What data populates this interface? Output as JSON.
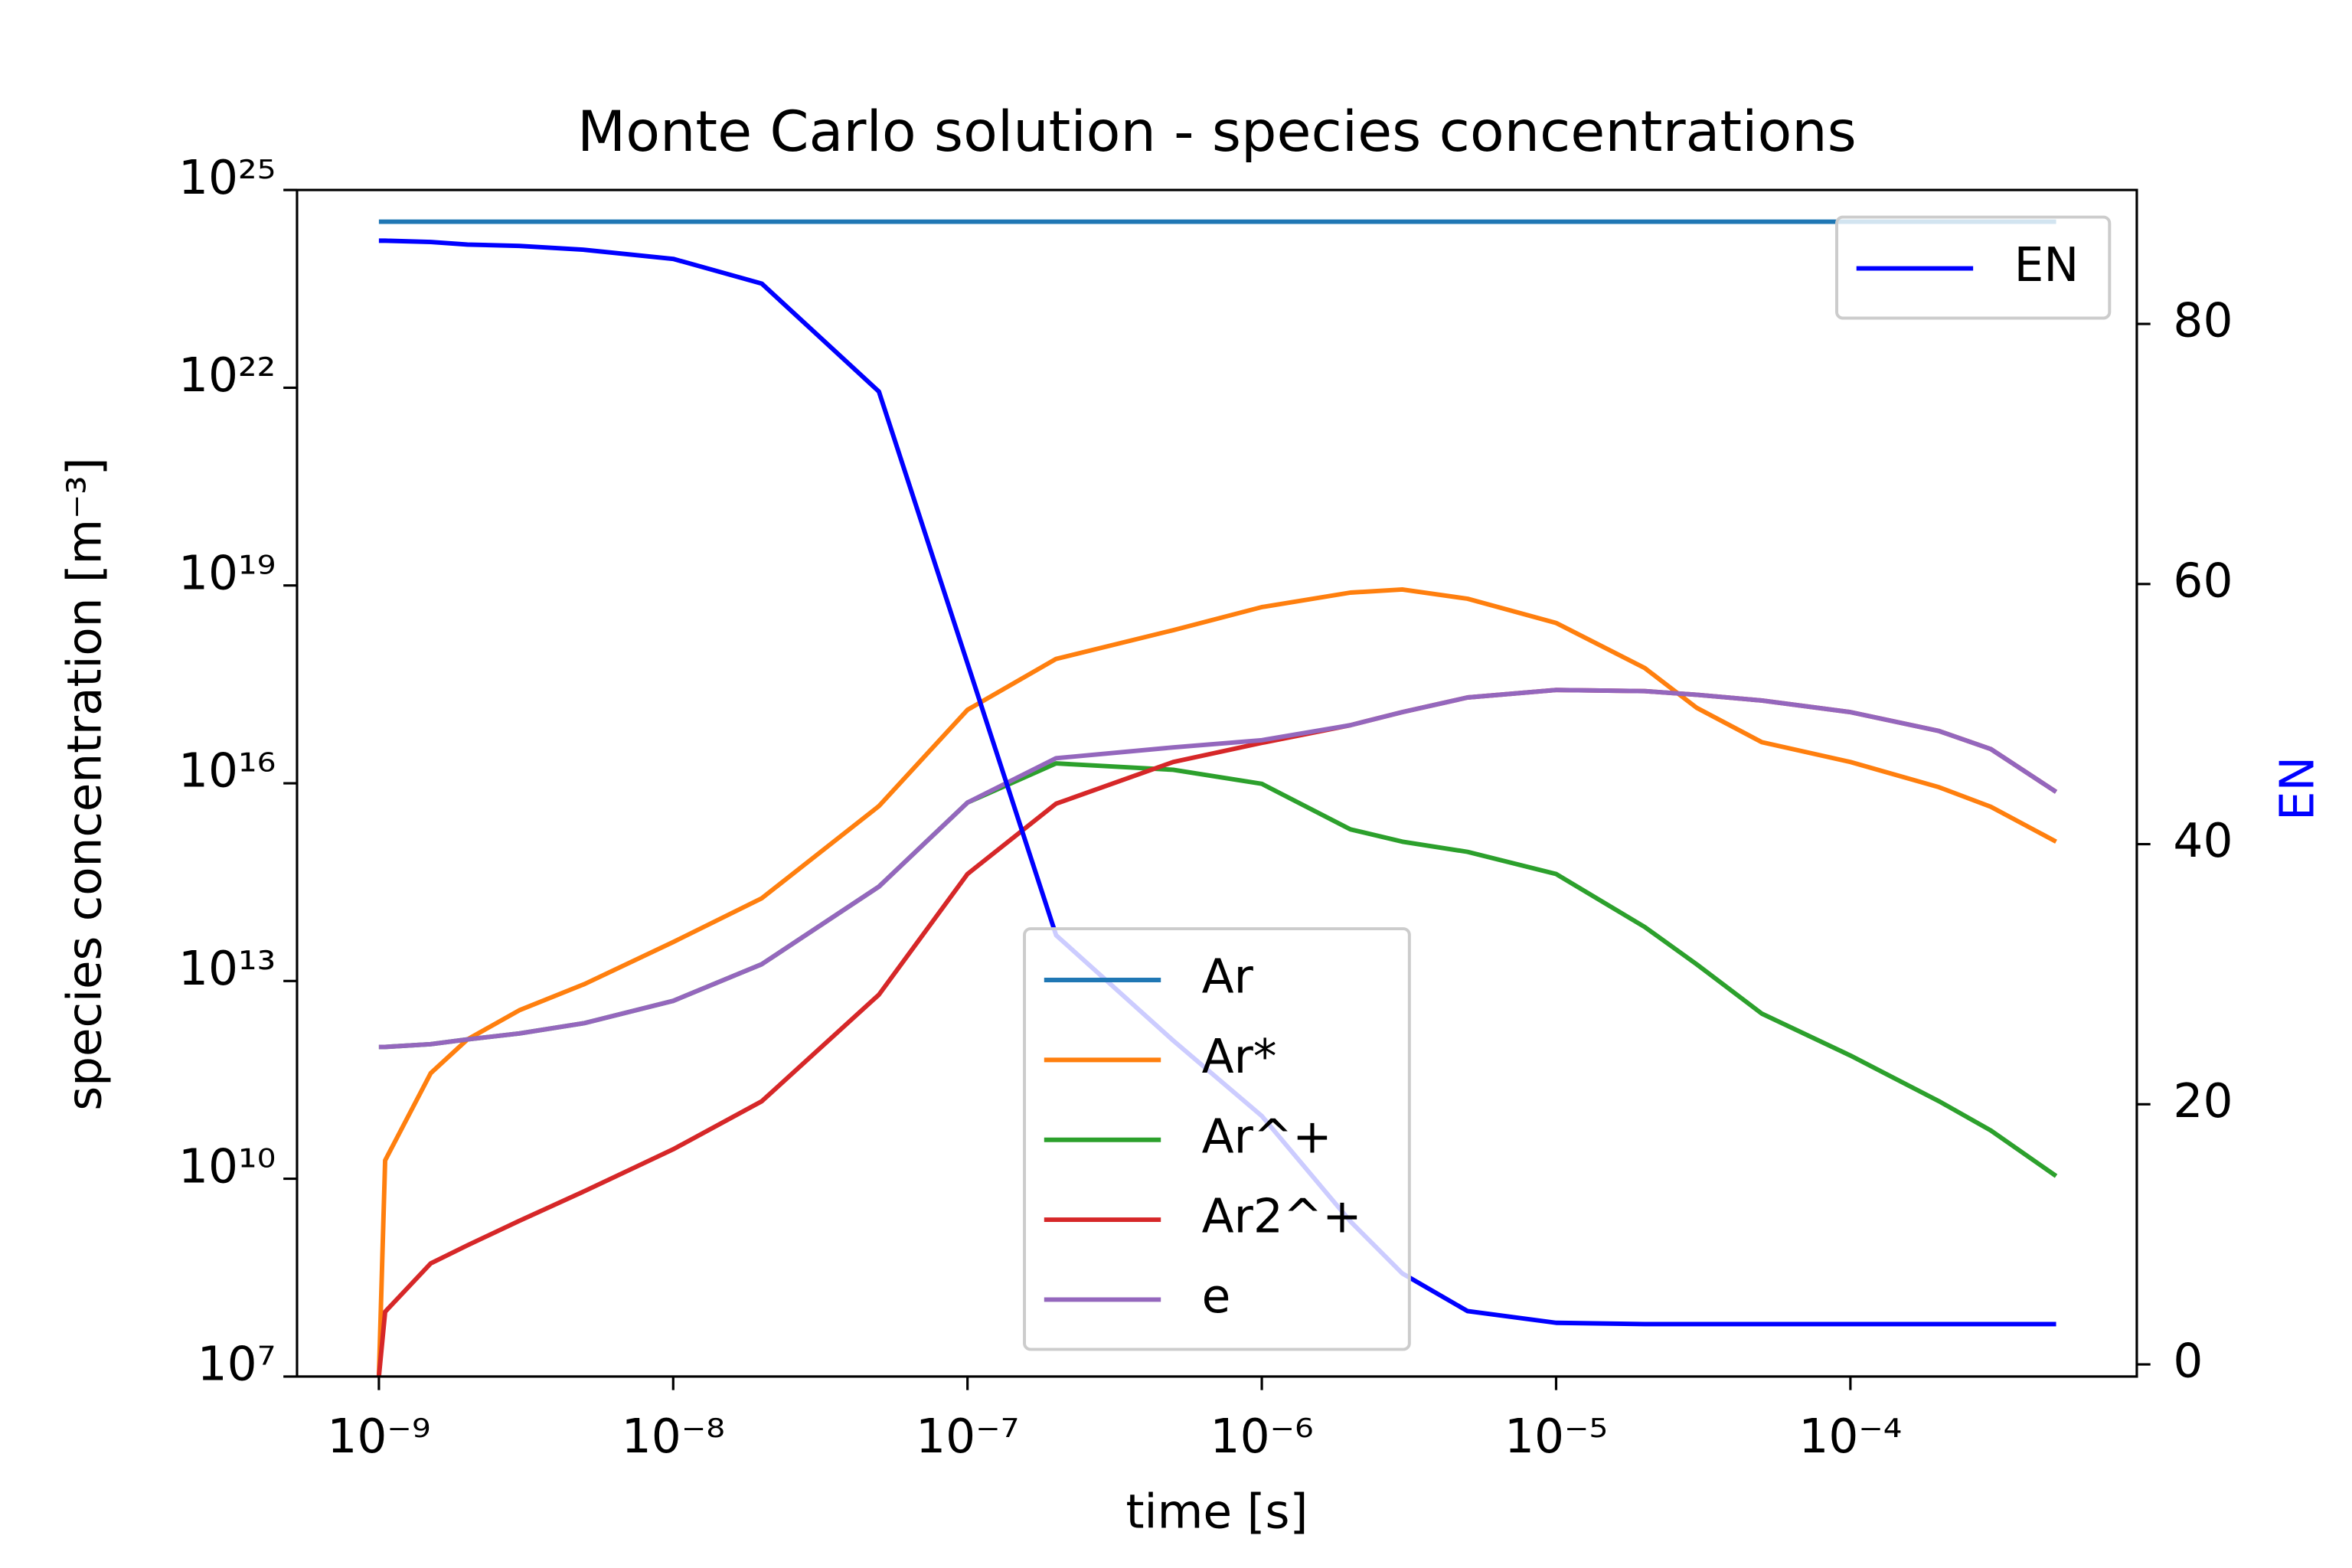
{
  "chart_data": {
    "type": "line",
    "title": "Monte Carlo solution - species concentrations",
    "xlabel": "time [s]",
    "ylabel": "species concentration [m⁻³]",
    "y2label": "EN",
    "xscale": "log",
    "yscale": "log",
    "xlim": [
      5.27e-10,
      0.00094
    ],
    "ylim": [
      10000000.0,
      1e+25
    ],
    "y2lim": [
      -0.93,
      90.3
    ],
    "xticks": [
      {
        "value": 1e-09,
        "label": "10⁻⁹"
      },
      {
        "value": 1e-08,
        "label": "10⁻⁸"
      },
      {
        "value": 1e-07,
        "label": "10⁻⁷"
      },
      {
        "value": 1e-06,
        "label": "10⁻⁶"
      },
      {
        "value": 1e-05,
        "label": "10⁻⁵"
      },
      {
        "value": 0.0001,
        "label": "10⁻⁴"
      }
    ],
    "yticks": [
      {
        "value": 10000000.0,
        "label": "10⁷"
      },
      {
        "value": 10000000000.0,
        "label": "10¹⁰"
      },
      {
        "value": 10000000000000.0,
        "label": "10¹³"
      },
      {
        "value": 1e+16,
        "label": "10¹⁶"
      },
      {
        "value": 1e+19,
        "label": "10¹⁹"
      },
      {
        "value": 1e+22,
        "label": "10²²"
      },
      {
        "value": 1e+25,
        "label": "10²⁵"
      }
    ],
    "y2ticks": [
      0,
      20,
      40,
      60,
      80
    ],
    "y2label_color": "#0000ff",
    "legend": "lower center",
    "legend_y2": "upper right",
    "x": [
      1e-09,
      1.05e-09,
      1.5e-09,
      2e-09,
      3e-09,
      5e-09,
      1e-08,
      2e-08,
      5e-08,
      1e-07,
      2e-07,
      5e-07,
      1e-06,
      2e-06,
      3e-06,
      5e-06,
      1e-05,
      2e-05,
      3e-05,
      5e-05,
      0.0001,
      0.0002,
      0.0003,
      0.0005
    ],
    "series": [
      {
        "name": "Ar",
        "color": "#1f77b4",
        "values": [
          3.3e+24,
          3.3e+24,
          3.3e+24,
          3.3e+24,
          3.3e+24,
          3.3e+24,
          3.3e+24,
          3.3e+24,
          3.3e+24,
          3.3e+24,
          3.3e+24,
          3.3e+24,
          3.3e+24,
          3.3e+24,
          3.3e+24,
          3.3e+24,
          3.3e+24,
          3.3e+24,
          3.3e+24,
          3.3e+24,
          3.3e+24,
          3.3e+24,
          3.3e+24,
          3.3e+24
        ]
      },
      {
        "name": "Ar*",
        "color": "#ff7f0e",
        "values": [
          10000000.0,
          19000000000.0,
          400000000000.0,
          1300000000000.0,
          3600000000000.0,
          9000000000000.0,
          39000000000000.0,
          180000000000000.0,
          4500000000000000.0,
          1.3e+17,
          7.7e+17,
          2.1e+18,
          4.7e+18,
          7.8e+18,
          8.7e+18,
          6.3e+18,
          2.7e+18,
          5.6e+17,
          1.4e+17,
          4.2e+16,
          2.1e+16,
          8700000000000000.0,
          4400000000000000.0,
          1300000000000000.0
        ]
      },
      {
        "name": "Ar^+",
        "color": "#2ca02c",
        "values": [
          1000000000000.0,
          1000000000000.0,
          1100000000000.0,
          1300000000000.0,
          1600000000000.0,
          2300000000000.0,
          5000000000000.0,
          18000000000000.0,
          270000000000000.0,
          5100000000000000.0,
          2e+16,
          1.6e+16,
          9800000000000000.0,
          2000000000000000.0,
          1300000000000000.0,
          910000000000000.0,
          420000000000000.0,
          66000000000000.0,
          18000000000000.0,
          3200000000000.0,
          740000000000.0,
          150000000000.0,
          54000000000.0,
          11000000000.0
        ]
      },
      {
        "name": "Ar2^+",
        "color": "#d62728",
        "values": [
          10000000.0,
          96000000.0,
          520000000.0,
          980000000.0,
          2300000000.0,
          6500000000.0,
          28000000000.0,
          150000000000.0,
          6200000000000.0,
          420000000000000.0,
          4900000000000000.0,
          2.1e+16,
          4.1e+16,
          7.6e+16,
          1.2e+17,
          2e+17,
          2.6e+17,
          2.5e+17,
          2.2e+17,
          1.8e+17,
          1.2e+17,
          6.2e+16,
          3.3e+16,
          7400000000000000.0
        ]
      },
      {
        "name": "e",
        "color": "#9467bd",
        "values": [
          1000000000000.0,
          1000000000000.0,
          1100000000000.0,
          1300000000000.0,
          1600000000000.0,
          2300000000000.0,
          5000000000000.0,
          18000000000000.0,
          270000000000000.0,
          5100000000000000.0,
          2.4e+16,
          3.5e+16,
          4.5e+16,
          7.6e+16,
          1.2e+17,
          2e+17,
          2.6e+17,
          2.5e+17,
          2.2e+17,
          1.8e+17,
          1.2e+17,
          6.2e+16,
          3.3e+16,
          7400000000000000.0
        ]
      },
      {
        "name": "EN",
        "color": "#0000ff",
        "axis": "y2",
        "values": [
          86.4,
          86.4,
          86.3,
          86.1,
          86.0,
          85.7,
          85.0,
          83.1,
          74.8,
          53.9,
          33.0,
          24.9,
          19.1,
          11.0,
          7.0,
          4.1,
          3.2,
          3.1,
          3.1,
          3.1,
          3.1,
          3.1,
          3.1,
          3.1
        ]
      }
    ]
  }
}
